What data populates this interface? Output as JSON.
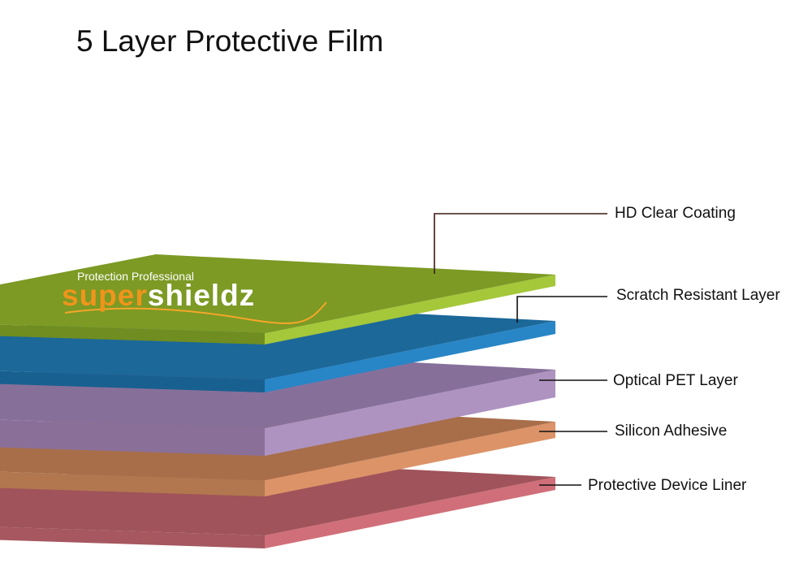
{
  "title": "5 Layer Protective Film",
  "logo": {
    "tagline": "Protection Professional",
    "part1": "super",
    "part2": "shieldz"
  },
  "layers": [
    {
      "label": "HD Clear Coating",
      "top": "#7c9a24",
      "left": "#6f8d20",
      "right": "#a5c73a"
    },
    {
      "label": "Scratch Resistant Layer",
      "top": "#1b6899",
      "left": "#186090",
      "right": "#2886c6"
    },
    {
      "label": "Optical PET Layer",
      "top": "#86709a",
      "left": "#8a7099",
      "right": "#ae93c0"
    },
    {
      "label": "Silicon Adhesive",
      "top": "#a86e4a",
      "left": "#b2774f",
      "right": "#dc9368"
    },
    {
      "label": "Protective Device Liner",
      "top": "#a0535a",
      "left": "#a6575f",
      "right": "#d06f79"
    }
  ]
}
